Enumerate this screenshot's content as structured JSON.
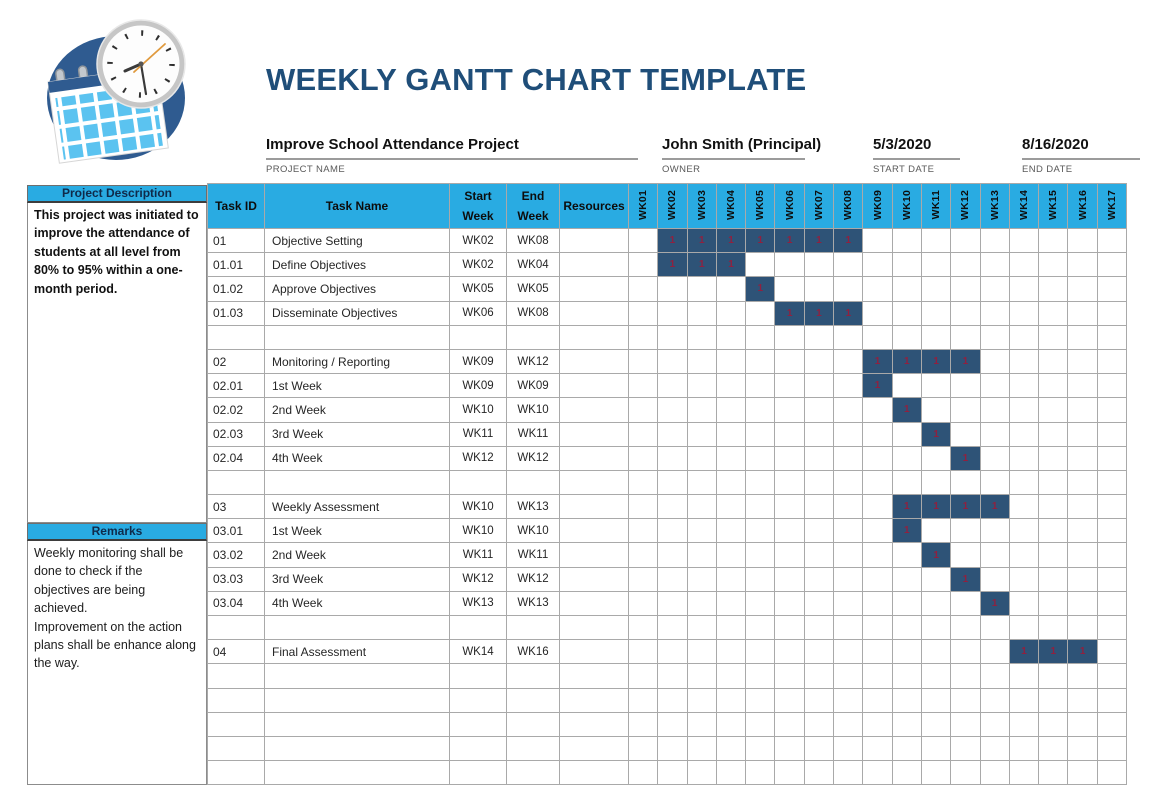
{
  "header": {
    "title": "WEEKLY GANTT CHART TEMPLATE"
  },
  "info_fields": [
    {
      "value": "Improve School Attendance Project",
      "label": "PROJECT NAME"
    },
    {
      "value": "John Smith (Principal)",
      "label": "OWNER"
    },
    {
      "value": "5/3/2020",
      "label": "START DATE"
    },
    {
      "value": "8/16/2020",
      "label": "END DATE"
    }
  ],
  "sidebar": {
    "description_title": "Project Description",
    "description_text": "This project was initiated to improve the attendance of students at all level from 80% to 95% within a one-month period.",
    "remarks_title": "Remarks",
    "remarks_line1": "Weekly monitoring shall be done to check if the objectives are being achieved.",
    "remarks_line2": "Improvement on the action plans shall be enhance along the way."
  },
  "table": {
    "task_id_header": "Task ID",
    "task_name_header": "Task Name",
    "start_week_header": "Start Week",
    "end_week_header": "End Week",
    "resources_header": "Resources"
  },
  "chart_data": {
    "type": "table",
    "subtype": "gantt",
    "title": "WEEKLY GANTT CHART TEMPLATE",
    "week_columns": [
      "WK01",
      "WK02",
      "WK03",
      "WK04",
      "WK05",
      "WK06",
      "WK07",
      "WK08",
      "WK09",
      "WK10",
      "WK11",
      "WK12",
      "WK13",
      "WK14",
      "WK15",
      "WK16",
      "WK17"
    ],
    "rows": [
      {
        "task_id": "01",
        "task_name": "Objective Setting",
        "start_week": "WK02",
        "end_week": "WK08",
        "resources": "",
        "fill_from": 2,
        "fill_to": 8,
        "fill_label": "1"
      },
      {
        "task_id": "01.01",
        "task_name": "Define Objectives",
        "start_week": "WK02",
        "end_week": "WK04",
        "resources": "",
        "fill_from": 2,
        "fill_to": 4,
        "fill_label": "1"
      },
      {
        "task_id": "01.02",
        "task_name": "Approve Objectives",
        "start_week": "WK05",
        "end_week": "WK05",
        "resources": "",
        "fill_from": 5,
        "fill_to": 5,
        "fill_label": "1"
      },
      {
        "task_id": "01.03",
        "task_name": "Disseminate Objectives",
        "start_week": "WK06",
        "end_week": "WK08",
        "resources": "",
        "fill_from": 6,
        "fill_to": 8,
        "fill_label": "1"
      },
      {
        "empty": true
      },
      {
        "task_id": "02",
        "task_name": "Monitoring / Reporting",
        "start_week": "WK09",
        "end_week": "WK12",
        "resources": "",
        "fill_from": 9,
        "fill_to": 12,
        "fill_label": "1"
      },
      {
        "task_id": "02.01",
        "task_name": "1st Week",
        "start_week": "WK09",
        "end_week": "WK09",
        "resources": "",
        "fill_from": 9,
        "fill_to": 9,
        "fill_label": "1"
      },
      {
        "task_id": "02.02",
        "task_name": "2nd Week",
        "start_week": "WK10",
        "end_week": "WK10",
        "resources": "",
        "fill_from": 10,
        "fill_to": 10,
        "fill_label": "1"
      },
      {
        "task_id": "02.03",
        "task_name": "3rd Week",
        "start_week": "WK11",
        "end_week": "WK11",
        "resources": "",
        "fill_from": 11,
        "fill_to": 11,
        "fill_label": "1"
      },
      {
        "task_id": "02.04",
        "task_name": "4th Week",
        "start_week": "WK12",
        "end_week": "WK12",
        "resources": "",
        "fill_from": 12,
        "fill_to": 12,
        "fill_label": "1"
      },
      {
        "empty": true
      },
      {
        "task_id": "03",
        "task_name": "Weekly Assessment",
        "start_week": "WK10",
        "end_week": "WK13",
        "resources": "",
        "fill_from": 10,
        "fill_to": 13,
        "fill_label": "1"
      },
      {
        "task_id": "03.01",
        "task_name": "1st Week",
        "start_week": "WK10",
        "end_week": "WK10",
        "resources": "",
        "fill_from": 10,
        "fill_to": 10,
        "fill_label": "1"
      },
      {
        "task_id": "03.02",
        "task_name": "2nd Week",
        "start_week": "WK11",
        "end_week": "WK11",
        "resources": "",
        "fill_from": 11,
        "fill_to": 11,
        "fill_label": "1"
      },
      {
        "task_id": "03.03",
        "task_name": "3rd Week",
        "start_week": "WK12",
        "end_week": "WK12",
        "resources": "",
        "fill_from": 12,
        "fill_to": 12,
        "fill_label": "1"
      },
      {
        "task_id": "03.04",
        "task_name": "4th Week",
        "start_week": "WK13",
        "end_week": "WK13",
        "resources": "",
        "fill_from": 13,
        "fill_to": 13,
        "fill_label": "1"
      },
      {
        "empty": true
      },
      {
        "task_id": "04",
        "task_name": "Final Assessment",
        "start_week": "WK14",
        "end_week": "WK16",
        "resources": "",
        "fill_from": 14,
        "fill_to": 16,
        "fill_label": "1"
      },
      {
        "empty": true
      },
      {
        "empty": true
      },
      {
        "empty": true
      },
      {
        "empty": true
      },
      {
        "empty": true
      }
    ]
  },
  "colors": {
    "accent_cyan": "#29ABE2",
    "bar_navy": "#2E5377",
    "bar_value_red": "#8F2140",
    "title_navy": "#1F4E79",
    "logo_blue": "#2F5B90",
    "logo_light_blue": "#5BC3F0"
  }
}
